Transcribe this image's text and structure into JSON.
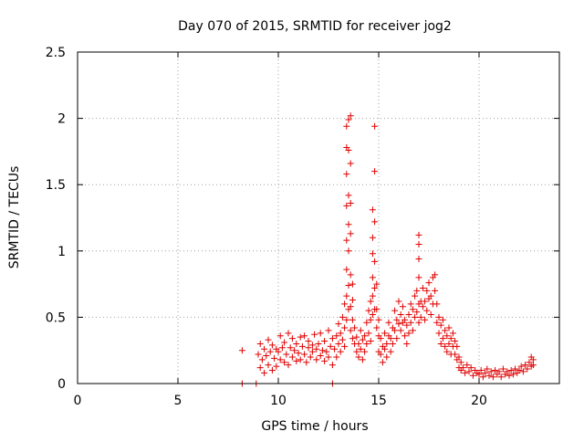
{
  "chart_data": {
    "type": "scatter",
    "title": "Day 070 of 2015, SRMTID for receiver jog2",
    "xlabel": "GPS time / hours",
    "ylabel": "SRMTID / TECUs",
    "xlim": [
      0,
      24
    ],
    "ylim": [
      0,
      2.5
    ],
    "xticks": [
      0,
      5,
      10,
      15,
      20
    ],
    "xtick_labels": [
      "0",
      "5",
      "10",
      "15",
      "20"
    ],
    "yticks": [
      0,
      0.5,
      1,
      1.5,
      2,
      2.5
    ],
    "ytick_labels": [
      "0",
      "0.5",
      "1",
      "1.5",
      "2",
      "2.5"
    ],
    "grid": true,
    "marker": "plus",
    "color": "#e00000",
    "series": [
      {
        "name": "SRMTID",
        "points": [
          [
            8.2,
            0.25
          ],
          [
            8.2,
            0.0
          ],
          [
            8.9,
            0.0
          ],
          [
            12.7,
            0.0
          ],
          [
            9.0,
            0.22
          ],
          [
            9.1,
            0.12
          ],
          [
            9.1,
            0.3
          ],
          [
            9.2,
            0.18
          ],
          [
            9.3,
            0.08
          ],
          [
            9.3,
            0.26
          ],
          [
            9.4,
            0.21
          ],
          [
            9.5,
            0.33
          ],
          [
            9.5,
            0.14
          ],
          [
            9.6,
            0.24
          ],
          [
            9.7,
            0.1
          ],
          [
            9.7,
            0.29
          ],
          [
            9.8,
            0.19
          ],
          [
            9.9,
            0.26
          ],
          [
            9.9,
            0.13
          ],
          [
            10.0,
            0.24
          ],
          [
            10.1,
            0.18
          ],
          [
            10.1,
            0.36
          ],
          [
            10.2,
            0.27
          ],
          [
            10.3,
            0.16
          ],
          [
            10.3,
            0.31
          ],
          [
            10.4,
            0.22
          ],
          [
            10.5,
            0.38
          ],
          [
            10.5,
            0.14
          ],
          [
            10.6,
            0.27
          ],
          [
            10.7,
            0.2
          ],
          [
            10.7,
            0.34
          ],
          [
            10.8,
            0.25
          ],
          [
            10.9,
            0.17
          ],
          [
            10.9,
            0.3
          ],
          [
            11.0,
            0.23
          ],
          [
            11.1,
            0.35
          ],
          [
            11.1,
            0.18
          ],
          [
            11.2,
            0.28
          ],
          [
            11.3,
            0.22
          ],
          [
            11.3,
            0.36
          ],
          [
            11.4,
            0.16
          ],
          [
            11.5,
            0.27
          ],
          [
            11.5,
            0.32
          ],
          [
            11.6,
            0.2
          ],
          [
            11.7,
            0.29
          ],
          [
            11.7,
            0.24
          ],
          [
            11.8,
            0.37
          ],
          [
            11.9,
            0.18
          ],
          [
            11.9,
            0.26
          ],
          [
            12.0,
            0.3
          ],
          [
            12.1,
            0.21
          ],
          [
            12.1,
            0.38
          ],
          [
            12.2,
            0.25
          ],
          [
            12.3,
            0.17
          ],
          [
            12.3,
            0.32
          ],
          [
            12.4,
            0.24
          ],
          [
            12.5,
            0.4
          ],
          [
            12.5,
            0.2
          ],
          [
            12.6,
            0.28
          ],
          [
            12.7,
            0.14
          ],
          [
            12.7,
            0.34
          ],
          [
            12.8,
            0.26
          ],
          [
            12.9,
            0.2
          ],
          [
            12.9,
            0.36
          ],
          [
            13.0,
            0.3
          ],
          [
            13.0,
            0.45
          ],
          [
            13.1,
            0.24
          ],
          [
            13.1,
            0.38
          ],
          [
            13.2,
            0.5
          ],
          [
            13.2,
            0.33
          ],
          [
            13.3,
            0.42
          ],
          [
            13.3,
            0.6
          ],
          [
            13.3,
            0.28
          ],
          [
            13.4,
            0.66
          ],
          [
            13.4,
            0.86
          ],
          [
            13.4,
            1.08
          ],
          [
            13.4,
            1.34
          ],
          [
            13.4,
            1.58
          ],
          [
            13.4,
            1.78
          ],
          [
            13.4,
            1.94
          ],
          [
            13.4,
            0.48
          ],
          [
            13.5,
            0.74
          ],
          [
            13.5,
            1.0
          ],
          [
            13.5,
            1.2
          ],
          [
            13.5,
            1.42
          ],
          [
            13.5,
            1.76
          ],
          [
            13.5,
            1.99
          ],
          [
            13.5,
            0.56
          ],
          [
            13.6,
            0.58
          ],
          [
            13.6,
            0.82
          ],
          [
            13.6,
            1.13
          ],
          [
            13.6,
            1.36
          ],
          [
            13.6,
            1.66
          ],
          [
            13.6,
            2.02
          ],
          [
            13.6,
            0.4
          ],
          [
            13.7,
            0.48
          ],
          [
            13.7,
            0.63
          ],
          [
            13.7,
            0.75
          ],
          [
            13.7,
            0.34
          ],
          [
            13.8,
            0.42
          ],
          [
            13.8,
            0.3
          ],
          [
            13.9,
            0.35
          ],
          [
            13.9,
            0.24
          ],
          [
            14.0,
            0.3
          ],
          [
            14.0,
            0.2
          ],
          [
            14.1,
            0.4
          ],
          [
            14.1,
            0.26
          ],
          [
            14.2,
            0.33
          ],
          [
            14.2,
            0.18
          ],
          [
            14.3,
            0.36
          ],
          [
            14.3,
            0.24
          ],
          [
            14.4,
            0.46
          ],
          [
            14.4,
            0.3
          ],
          [
            14.5,
            0.55
          ],
          [
            14.5,
            0.38
          ],
          [
            14.6,
            0.62
          ],
          [
            14.6,
            0.48
          ],
          [
            14.6,
            0.32
          ],
          [
            14.7,
            0.66
          ],
          [
            14.7,
            0.8
          ],
          [
            14.7,
            0.98
          ],
          [
            14.7,
            1.1
          ],
          [
            14.7,
            1.31
          ],
          [
            14.7,
            0.52
          ],
          [
            14.8,
            0.72
          ],
          [
            14.8,
            0.92
          ],
          [
            14.8,
            1.22
          ],
          [
            14.8,
            1.6
          ],
          [
            14.8,
            1.94
          ],
          [
            14.8,
            0.56
          ],
          [
            14.9,
            0.56
          ],
          [
            14.9,
            0.75
          ],
          [
            14.9,
            0.42
          ],
          [
            15.0,
            0.36
          ],
          [
            15.0,
            0.24
          ],
          [
            15.0,
            0.48
          ],
          [
            15.1,
            0.22
          ],
          [
            15.1,
            0.34
          ],
          [
            15.2,
            0.28
          ],
          [
            15.2,
            0.16
          ],
          [
            15.3,
            0.26
          ],
          [
            15.3,
            0.38
          ],
          [
            15.4,
            0.3
          ],
          [
            15.4,
            0.2
          ],
          [
            15.5,
            0.36
          ],
          [
            15.5,
            0.46
          ],
          [
            15.6,
            0.34
          ],
          [
            15.6,
            0.24
          ],
          [
            15.7,
            0.42
          ],
          [
            15.7,
            0.3
          ],
          [
            15.8,
            0.4
          ],
          [
            15.8,
            0.55
          ],
          [
            15.9,
            0.48
          ],
          [
            15.9,
            0.34
          ],
          [
            16.0,
            0.45
          ],
          [
            16.0,
            0.62
          ],
          [
            16.1,
            0.52
          ],
          [
            16.1,
            0.4
          ],
          [
            16.2,
            0.46
          ],
          [
            16.2,
            0.58
          ],
          [
            16.3,
            0.36
          ],
          [
            16.3,
            0.48
          ],
          [
            16.4,
            0.44
          ],
          [
            16.4,
            0.3
          ],
          [
            16.5,
            0.38
          ],
          [
            16.5,
            0.52
          ],
          [
            16.6,
            0.46
          ],
          [
            16.6,
            0.6
          ],
          [
            16.7,
            0.56
          ],
          [
            16.7,
            0.4
          ],
          [
            16.8,
            0.5
          ],
          [
            16.8,
            0.66
          ],
          [
            16.9,
            0.7
          ],
          [
            16.9,
            0.54
          ],
          [
            17.0,
            0.6
          ],
          [
            17.0,
            0.8
          ],
          [
            17.0,
            0.94
          ],
          [
            17.0,
            1.05
          ],
          [
            17.0,
            1.12
          ],
          [
            17.0,
            0.46
          ],
          [
            17.1,
            0.62
          ],
          [
            17.1,
            0.5
          ],
          [
            17.2,
            0.58
          ],
          [
            17.2,
            0.72
          ],
          [
            17.3,
            0.62
          ],
          [
            17.3,
            0.48
          ],
          [
            17.4,
            0.55
          ],
          [
            17.4,
            0.7
          ],
          [
            17.5,
            0.64
          ],
          [
            17.5,
            0.76
          ],
          [
            17.6,
            0.52
          ],
          [
            17.6,
            0.66
          ],
          [
            17.7,
            0.8
          ],
          [
            17.7,
            0.6
          ],
          [
            17.8,
            0.82
          ],
          [
            17.8,
            0.7
          ],
          [
            17.9,
            0.46
          ],
          [
            17.9,
            0.6
          ],
          [
            18.0,
            0.5
          ],
          [
            18.0,
            0.38
          ],
          [
            18.1,
            0.44
          ],
          [
            18.1,
            0.3
          ],
          [
            18.2,
            0.34
          ],
          [
            18.2,
            0.48
          ],
          [
            18.3,
            0.4
          ],
          [
            18.3,
            0.28
          ],
          [
            18.4,
            0.36
          ],
          [
            18.4,
            0.24
          ],
          [
            18.5,
            0.3
          ],
          [
            18.5,
            0.42
          ],
          [
            18.6,
            0.34
          ],
          [
            18.6,
            0.22
          ],
          [
            18.7,
            0.28
          ],
          [
            18.7,
            0.38
          ],
          [
            18.8,
            0.22
          ],
          [
            18.8,
            0.32
          ],
          [
            18.9,
            0.28
          ],
          [
            18.9,
            0.18
          ],
          [
            19.0,
            0.2
          ],
          [
            19.0,
            0.12
          ],
          [
            19.1,
            0.16
          ],
          [
            19.1,
            0.1
          ],
          [
            19.2,
            0.12
          ],
          [
            19.3,
            0.08
          ],
          [
            19.4,
            0.14
          ],
          [
            19.5,
            0.09
          ],
          [
            19.6,
            0.12
          ],
          [
            19.7,
            0.06
          ],
          [
            19.8,
            0.1
          ],
          [
            19.9,
            0.08
          ],
          [
            20.0,
            0.07
          ],
          [
            20.1,
            0.1
          ],
          [
            20.2,
            0.05
          ],
          [
            20.3,
            0.08
          ],
          [
            20.4,
            0.11
          ],
          [
            20.5,
            0.06
          ],
          [
            20.6,
            0.09
          ],
          [
            20.7,
            0.05
          ],
          [
            20.8,
            0.1
          ],
          [
            20.9,
            0.07
          ],
          [
            21.0,
            0.09
          ],
          [
            21.1,
            0.05
          ],
          [
            21.2,
            0.11
          ],
          [
            21.3,
            0.07
          ],
          [
            21.4,
            0.09
          ],
          [
            21.5,
            0.06
          ],
          [
            21.6,
            0.1
          ],
          [
            21.7,
            0.07
          ],
          [
            21.8,
            0.11
          ],
          [
            21.9,
            0.08
          ],
          [
            22.0,
            0.1
          ],
          [
            22.1,
            0.13
          ],
          [
            22.2,
            0.09
          ],
          [
            22.3,
            0.14
          ],
          [
            22.4,
            0.11
          ],
          [
            22.5,
            0.16
          ],
          [
            22.6,
            0.13
          ],
          [
            22.6,
            0.2
          ],
          [
            22.7,
            0.18
          ],
          [
            22.7,
            0.14
          ]
        ]
      }
    ]
  }
}
